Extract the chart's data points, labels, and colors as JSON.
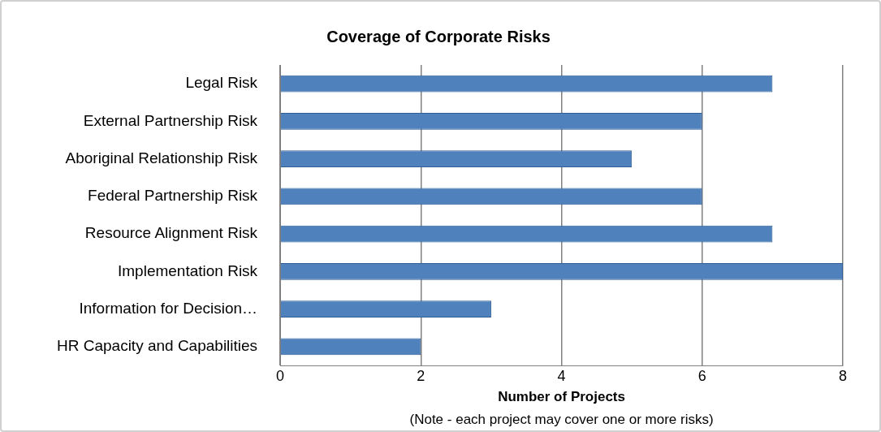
{
  "chart_data": {
    "type": "bar",
    "orientation": "horizontal",
    "title": "Coverage of Corporate Risks",
    "xlabel": "Number of Projects",
    "categories": [
      "Legal Risk",
      "External Partnership Risk",
      "Aboriginal Relationship Risk",
      "Federal Partnership Risk",
      "Resource Alignment Risk",
      "Implementation Risk",
      "Information for Decision…",
      "HR Capacity and Capabilities"
    ],
    "values": [
      7,
      6,
      5,
      6,
      7,
      8,
      3,
      2
    ],
    "color": "#4f81bd",
    "xlim": [
      0,
      8
    ],
    "xticks": [
      0,
      2,
      4,
      6,
      8
    ],
    "grid": "x",
    "legend": false,
    "annotations": [
      "(Note - each project may cover one or more risks)"
    ]
  }
}
